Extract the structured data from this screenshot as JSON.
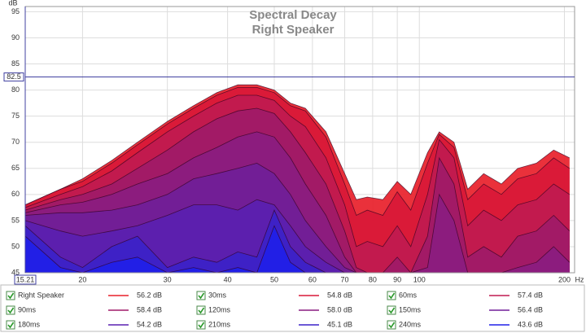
{
  "chart_data": {
    "type": "area",
    "title": "Spectral Decay",
    "subtitle": "Right Speaker",
    "y_unit": "dB",
    "x_unit": "Hz",
    "log_x": true,
    "grid": true,
    "xlim": [
      15.21,
      210
    ],
    "ylim": [
      45,
      96
    ],
    "xticks": [
      20,
      30,
      40,
      50,
      60,
      70,
      80,
      90,
      100,
      200
    ],
    "yticks": [
      45,
      50,
      55,
      60,
      65,
      70,
      75,
      80,
      85,
      90,
      95
    ],
    "cursor": {
      "x": 15.21,
      "y": 82.5
    },
    "x": [
      15.21,
      18,
      20,
      23,
      26,
      30,
      34,
      38,
      42,
      46,
      50,
      54,
      58,
      64,
      70,
      74,
      78,
      84,
      90,
      96,
      104,
      110,
      118,
      126,
      136,
      148,
      160,
      175,
      190,
      205
    ],
    "series": [
      {
        "name": "Right Speaker",
        "color": "#e8202a",
        "readout": "56.2 dB",
        "values": [
          58,
          61,
          63,
          66.5,
          70,
          74,
          77,
          79.5,
          81,
          81,
          80,
          77.5,
          76.5,
          72,
          64,
          59,
          59.5,
          59,
          62.5,
          60,
          68,
          72,
          70,
          61,
          64,
          62,
          65,
          66,
          68.5,
          67
        ]
      },
      {
        "name": "30ms",
        "color": "#d81838",
        "readout": "54.8 dB",
        "values": [
          58,
          61,
          62.5,
          66,
          69.5,
          73.5,
          76.5,
          79,
          80.5,
          80.5,
          79.5,
          77,
          76,
          71,
          62,
          56,
          57,
          56,
          60.5,
          57,
          66,
          71.5,
          69,
          59,
          62,
          60,
          63,
          64,
          67,
          65
        ]
      },
      {
        "name": "60ms",
        "color": "#c01a50",
        "readout": "57.4 dB",
        "values": [
          57.5,
          60,
          61.5,
          64.5,
          68,
          72,
          75,
          77.5,
          79,
          79,
          78,
          75,
          73,
          67,
          58,
          50,
          51,
          50,
          54,
          50,
          60,
          70.5,
          67,
          54,
          57,
          55,
          58,
          59,
          62,
          60
        ]
      },
      {
        "name": "90ms",
        "color": "#a01a68",
        "readout": "58.4 dB",
        "values": [
          57,
          59,
          60,
          62,
          65,
          68.5,
          72,
          74.5,
          76,
          76.5,
          75.5,
          72,
          68,
          62,
          53,
          46,
          45,
          45,
          48,
          45,
          52,
          67,
          62,
          48,
          50,
          48,
          52,
          53,
          56,
          53
        ]
      },
      {
        "name": "120ms",
        "color": "#8a1c80",
        "readout": "58.0 dB",
        "values": [
          56.5,
          58,
          58.5,
          60,
          62,
          64,
          67,
          69,
          71,
          72,
          71,
          67,
          62,
          56,
          48,
          45,
          45,
          45,
          45,
          45,
          46,
          60,
          55,
          45,
          45,
          45,
          46,
          47,
          50,
          47
        ]
      },
      {
        "name": "150ms",
        "color": "#701e98",
        "readout": "56.4 dB",
        "values": [
          56,
          56.5,
          56.5,
          57,
          58,
          60,
          63,
          64,
          65,
          66,
          64,
          60,
          55,
          50,
          46,
          45,
          45,
          45,
          45,
          45,
          45,
          45,
          45,
          45,
          45,
          45,
          45,
          45,
          45,
          45
        ]
      },
      {
        "name": "180ms",
        "color": "#5a20b0",
        "readout": "54.2 dB",
        "values": [
          55,
          53,
          52,
          53,
          54,
          56,
          58,
          58,
          57,
          59,
          58,
          54,
          50,
          47,
          45,
          45,
          45,
          45,
          45,
          45,
          45,
          45,
          45,
          45,
          45,
          45,
          45,
          45,
          45,
          45
        ]
      },
      {
        "name": "210ms",
        "color": "#3c22c8",
        "readout": "45.1 dB",
        "values": [
          54,
          48,
          46,
          50,
          52,
          46,
          48,
          47,
          49,
          48,
          57,
          50,
          47,
          45,
          45,
          45,
          45,
          45,
          45,
          45,
          45,
          45,
          45,
          45,
          45,
          45,
          45,
          45,
          45,
          45
        ]
      },
      {
        "name": "240ms",
        "color": "#2020e8",
        "readout": "43.6 dB",
        "values": [
          52,
          46,
          45,
          47,
          48,
          45,
          46,
          45,
          46,
          45,
          54,
          47,
          45,
          45,
          45,
          45,
          45,
          45,
          45,
          45,
          45,
          45,
          45,
          45,
          45,
          45,
          45,
          45,
          45,
          45
        ]
      }
    ]
  }
}
